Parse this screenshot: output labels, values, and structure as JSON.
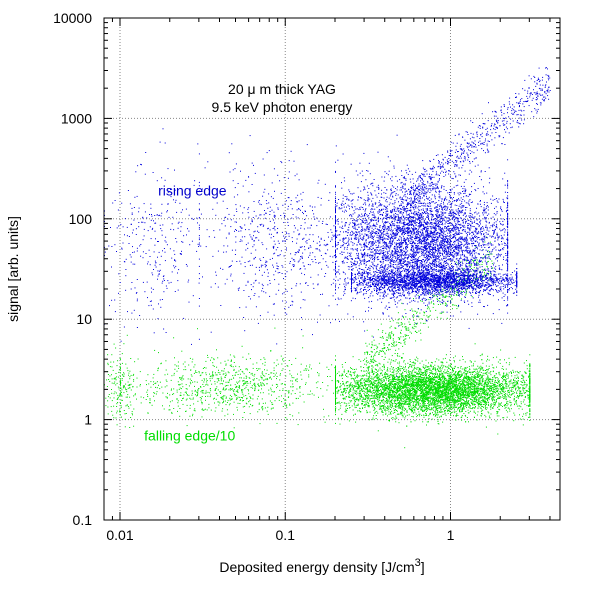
{
  "chart_data": {
    "type": "scatter",
    "title": "",
    "xlabel": "Deposited energy density [J/cm",
    "xlabel_sup": "3",
    "xlabel_end": "]",
    "ylabel": "signal [arb. units]",
    "x_scale": "log",
    "y_scale": "log",
    "xlim": [
      0.008,
      4.6
    ],
    "ylim": [
      0.1,
      10000
    ],
    "grid": true,
    "x_ticks": [
      {
        "value": 0.01,
        "label": "0.01"
      },
      {
        "value": 0.1,
        "label": "0.1"
      },
      {
        "value": 1,
        "label": "1"
      }
    ],
    "y_ticks": [
      {
        "value": 0.1,
        "label": "0.1"
      },
      {
        "value": 1,
        "label": "1"
      },
      {
        "value": 10,
        "label": "10"
      },
      {
        "value": 100,
        "label": "100"
      },
      {
        "value": 1000,
        "label": "1000"
      },
      {
        "value": 10000,
        "label": "10000"
      }
    ],
    "annotations": [
      {
        "text": "20  μ m thick YAG",
        "x": 0.045,
        "y": 1600,
        "color": "#000000"
      },
      {
        "text": "9.5 keV photon energy",
        "x": 0.045,
        "y": 1000,
        "color": "#000000"
      },
      {
        "text": "rising edge",
        "x": 0.017,
        "y": 170,
        "color": "#0000cc"
      },
      {
        "text": "falling edge/10",
        "x": 0.014,
        "y": 0.62,
        "color": "#00dd00"
      }
    ],
    "series": [
      {
        "name": "rising edge",
        "color": "#0000dd",
        "clusters": [
          {
            "x_range": [
              0.2,
              2.2
            ],
            "y_center": 60,
            "y_spread_decades": 0.28,
            "count": 5200
          },
          {
            "x_range": [
              0.25,
              2.5
            ],
            "y_center": 24,
            "y_spread_decades": 0.06,
            "count": 2200
          },
          {
            "x_range": [
              0.03,
              0.3
            ],
            "y_center": 60,
            "y_spread_decades": 0.35,
            "count": 700
          },
          {
            "x_range": [
              0.008,
              0.03
            ],
            "y_center": 60,
            "y_spread_decades": 0.4,
            "count": 300
          }
        ],
        "trend": {
          "x_range": [
            0.5,
            4.0
          ],
          "y_at_start": 150,
          "y_at_end": 2200,
          "count": 600
        }
      },
      {
        "name": "falling edge/10",
        "color": "#00dd00",
        "clusters": [
          {
            "x_range": [
              0.2,
              3.0
            ],
            "y_center": 2.0,
            "y_spread_decades": 0.12,
            "count": 6000
          },
          {
            "x_range": [
              0.01,
              0.2
            ],
            "y_center": 2.2,
            "y_spread_decades": 0.15,
            "count": 900
          },
          {
            "x_range": [
              0.008,
              0.012
            ],
            "y_center": 2.2,
            "y_spread_decades": 0.18,
            "count": 150
          }
        ],
        "trend": {
          "x_range": [
            0.3,
            1.8
          ],
          "y_at_start": 4,
          "y_at_end": 40,
          "count": 500
        }
      }
    ]
  }
}
